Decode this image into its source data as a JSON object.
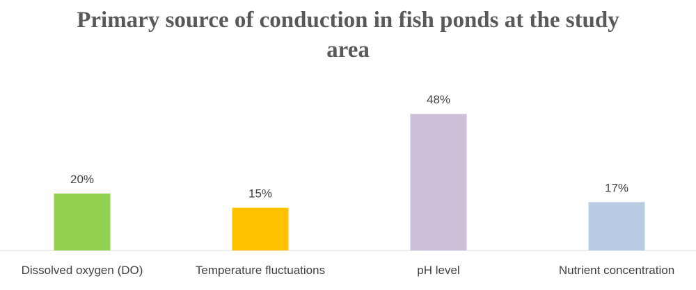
{
  "chart_data": {
    "type": "bar",
    "title_line1": "Primary source of conduction in fish ponds at the study",
    "title_line2": "area",
    "categories": [
      "Dissolved oxygen (DO)",
      "Temperature fluctuations",
      "pH level",
      "Nutrient concentration"
    ],
    "values": [
      20,
      15,
      48,
      17
    ],
    "data_labels": [
      "20%",
      "15%",
      "48%",
      "17%"
    ],
    "colors": [
      "#92d050",
      "#ffc000",
      "#ccc0da",
      "#b8cce4"
    ],
    "xlabel": "",
    "ylabel": "",
    "ylim": [
      0,
      60
    ],
    "grid": false,
    "legend": "none"
  }
}
